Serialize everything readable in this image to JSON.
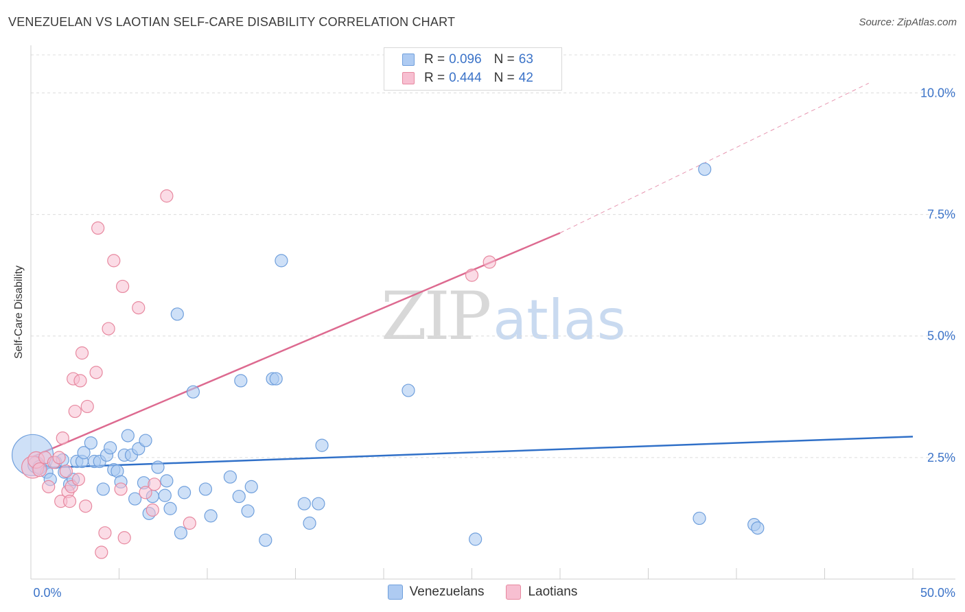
{
  "title": "VENEZUELAN VS LAOTIAN SELF-CARE DISABILITY CORRELATION CHART",
  "source": "Source: ZipAtlas.com",
  "watermark": {
    "zip": "ZIP",
    "atlas": "atlas"
  },
  "legend_top": [
    {
      "r_label": "R =",
      "r_value": "0.096",
      "n_label": "N =",
      "n_value": "63"
    },
    {
      "r_label": "R =",
      "r_value": "0.444",
      "n_label": "N =",
      "n_value": "42"
    }
  ],
  "legend_bottom": [
    "Venezuelans",
    "Laotians"
  ],
  "colors": {
    "venezuelans_fill": "#aecbf2",
    "venezuelans_stroke": "#6f9fdc",
    "venezuelans_line": "#3070c8",
    "laotians_fill": "#f7bfd1",
    "laotians_stroke": "#e7889f",
    "laotians_line": "#dd6a90",
    "axis_text": "#3b73c8"
  },
  "chart_data": {
    "type": "scatter",
    "title": "VENEZUELAN VS LAOTIAN SELF-CARE DISABILITY CORRELATION CHART",
    "xlabel": "",
    "ylabel": "Self-Care Disability",
    "xlim": [
      0,
      50
    ],
    "ylim": [
      0,
      10.5
    ],
    "x_tick_labels": [
      "0.0%",
      "50.0%"
    ],
    "y_ticks": [
      2.5,
      5.0,
      7.5,
      10.0
    ],
    "y_tick_labels": [
      "2.5%",
      "5.0%",
      "7.5%",
      "10.0%"
    ],
    "grid": true,
    "legend_position": "top-center",
    "series": [
      {
        "name": "Venezuelans",
        "r": 0.096,
        "n": 63,
        "trend": {
          "x": [
            0,
            50
          ],
          "y": [
            2.28,
            2.93
          ],
          "dashed_from": null
        },
        "points": [
          [
            0.1,
            2.55,
            30
          ],
          [
            0.3,
            2.35,
            12
          ],
          [
            0.5,
            2.3,
            10
          ],
          [
            0.9,
            2.2,
            9
          ],
          [
            1.1,
            2.05,
            9
          ],
          [
            1.4,
            2.4,
            9
          ],
          [
            1.8,
            2.45,
            9
          ],
          [
            1.9,
            2.2,
            9
          ],
          [
            2.2,
            1.95,
            9
          ],
          [
            2.4,
            2.05,
            9
          ],
          [
            2.6,
            2.42,
            9
          ],
          [
            2.9,
            2.42,
            9
          ],
          [
            3.0,
            2.6,
            9
          ],
          [
            3.4,
            2.8,
            9
          ],
          [
            3.6,
            2.42,
            9
          ],
          [
            3.9,
            2.42,
            9
          ],
          [
            4.1,
            1.85,
            9
          ],
          [
            4.3,
            2.55,
            9
          ],
          [
            4.5,
            2.7,
            9
          ],
          [
            4.7,
            2.25,
            9
          ],
          [
            4.9,
            2.22,
            9
          ],
          [
            5.1,
            2.0,
            9
          ],
          [
            5.3,
            2.55,
            9
          ],
          [
            5.5,
            2.95,
            9
          ],
          [
            5.7,
            2.55,
            9
          ],
          [
            5.9,
            1.65,
            9
          ],
          [
            6.1,
            2.68,
            9
          ],
          [
            6.4,
            1.98,
            9
          ],
          [
            6.5,
            2.85,
            9
          ],
          [
            6.7,
            1.35,
            9
          ],
          [
            6.9,
            1.7,
            9
          ],
          [
            7.2,
            2.3,
            9
          ],
          [
            7.6,
            1.72,
            9
          ],
          [
            7.7,
            2.02,
            9
          ],
          [
            7.9,
            1.45,
            9
          ],
          [
            8.3,
            5.45,
            9
          ],
          [
            8.5,
            0.95,
            9
          ],
          [
            8.7,
            1.78,
            9
          ],
          [
            9.2,
            3.85,
            9
          ],
          [
            9.9,
            1.85,
            9
          ],
          [
            10.2,
            1.3,
            9
          ],
          [
            11.3,
            2.1,
            9
          ],
          [
            11.8,
            1.7,
            9
          ],
          [
            11.9,
            4.08,
            9
          ],
          [
            12.3,
            1.4,
            9
          ],
          [
            12.5,
            1.9,
            9
          ],
          [
            13.3,
            0.8,
            9
          ],
          [
            13.7,
            4.12,
            9
          ],
          [
            13.9,
            4.12,
            9
          ],
          [
            14.2,
            6.55,
            9
          ],
          [
            15.5,
            1.55,
            9
          ],
          [
            15.8,
            1.15,
            9
          ],
          [
            16.3,
            1.55,
            9
          ],
          [
            16.5,
            2.75,
            9
          ],
          [
            21.4,
            3.88,
            9
          ],
          [
            25.2,
            0.82,
            9
          ],
          [
            37.9,
            1.25,
            9
          ],
          [
            38.2,
            8.43,
            9
          ],
          [
            41.0,
            1.12,
            9
          ],
          [
            41.2,
            1.05,
            9
          ]
        ]
      },
      {
        "name": "Laotians",
        "r": 0.444,
        "n": 42,
        "trend": {
          "x": [
            0,
            30
          ],
          "y": [
            2.5,
            7.12
          ],
          "dashed_to": [
            47.5,
            10.2
          ]
        },
        "points": [
          [
            0.1,
            2.3,
            16
          ],
          [
            0.3,
            2.45,
            12
          ],
          [
            0.5,
            2.25,
            10
          ],
          [
            0.8,
            2.5,
            9
          ],
          [
            1.0,
            1.9,
            9
          ],
          [
            1.3,
            2.4,
            9
          ],
          [
            1.6,
            2.5,
            9
          ],
          [
            1.7,
            1.6,
            9
          ],
          [
            1.8,
            2.9,
            9
          ],
          [
            2.0,
            2.22,
            9
          ],
          [
            2.1,
            1.8,
            9
          ],
          [
            2.2,
            1.6,
            9
          ],
          [
            2.3,
            1.9,
            9
          ],
          [
            2.4,
            4.12,
            9
          ],
          [
            2.5,
            3.45,
            9
          ],
          [
            2.7,
            2.05,
            9
          ],
          [
            2.8,
            4.08,
            9
          ],
          [
            2.9,
            4.65,
            9
          ],
          [
            3.1,
            1.5,
            9
          ],
          [
            3.2,
            3.55,
            9
          ],
          [
            3.7,
            4.25,
            9
          ],
          [
            3.8,
            7.22,
            9
          ],
          [
            4.0,
            0.55,
            9
          ],
          [
            4.2,
            0.95,
            9
          ],
          [
            4.4,
            5.15,
            9
          ],
          [
            4.7,
            6.55,
            9
          ],
          [
            5.1,
            1.85,
            9
          ],
          [
            5.2,
            6.02,
            9
          ],
          [
            5.3,
            0.85,
            9
          ],
          [
            6.1,
            5.58,
            9
          ],
          [
            6.5,
            1.78,
            9
          ],
          [
            6.9,
            1.42,
            9
          ],
          [
            7.0,
            1.95,
            9
          ],
          [
            7.7,
            7.88,
            9
          ],
          [
            9.0,
            1.15,
            9
          ],
          [
            25.0,
            6.25,
            9
          ],
          [
            26.0,
            6.52,
            9
          ]
        ]
      }
    ]
  }
}
